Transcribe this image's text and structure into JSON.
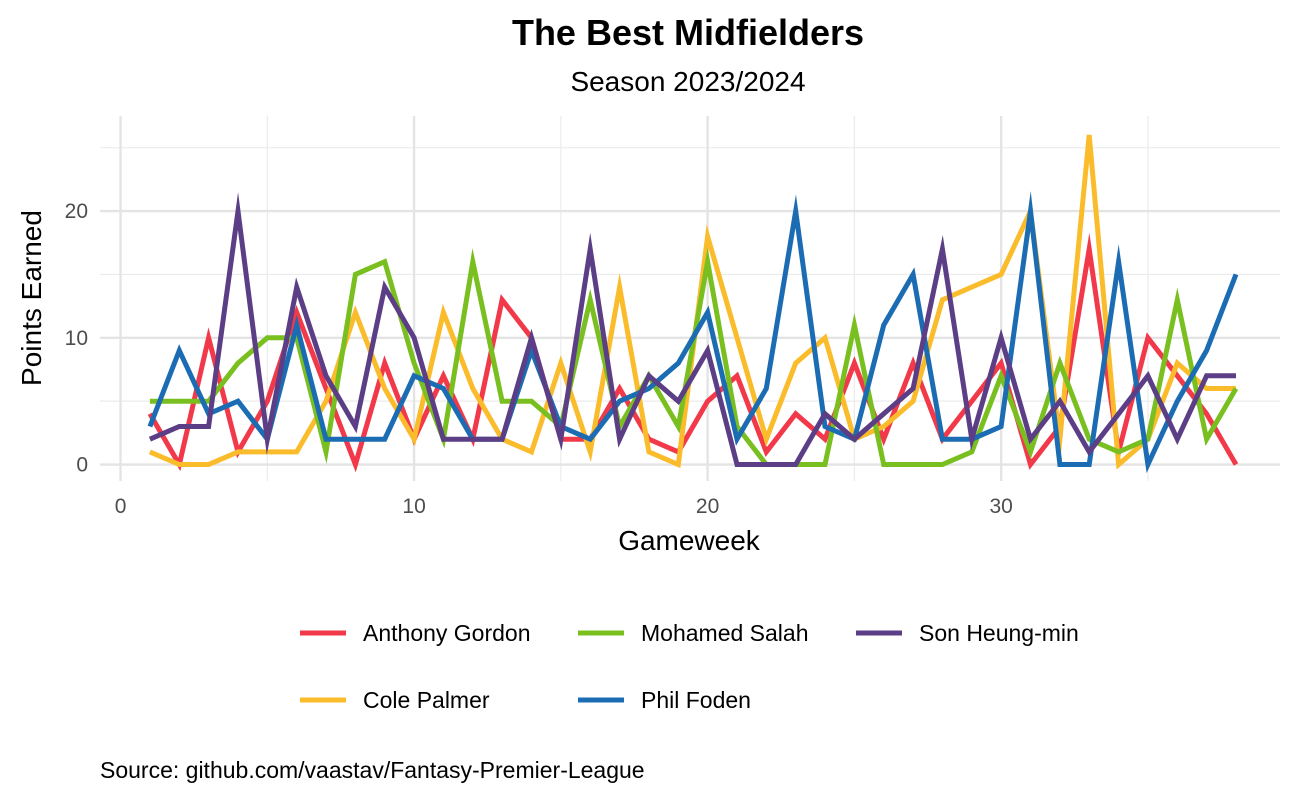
{
  "chart_data": {
    "type": "line",
    "title": "The Best Midfielders",
    "subtitle": "Season 2023/2024",
    "xlabel": "Gameweek",
    "ylabel": "Points Earned",
    "caption": "Source: github.com/vaastav/Fantasy-Premier-League",
    "xlim": [
      -0.7,
      39.5
    ],
    "ylim": [
      -1.3,
      27.5
    ],
    "x_ticks": [
      0,
      10,
      20,
      30
    ],
    "y_ticks": [
      0,
      10,
      20
    ],
    "grid": true,
    "legend_position": "bottom",
    "x": [
      1,
      2,
      3,
      4,
      5,
      6,
      7,
      8,
      9,
      10,
      11,
      12,
      13,
      14,
      15,
      16,
      17,
      18,
      19,
      20,
      21,
      22,
      23,
      24,
      25,
      26,
      27,
      28,
      29,
      30,
      31,
      32,
      33,
      34,
      35,
      36,
      37,
      38
    ],
    "series": [
      {
        "name": "Anthony Gordon",
        "color": "#F2394A",
        "values": [
          4,
          0,
          10,
          1,
          5,
          12,
          6,
          0,
          8,
          2,
          7,
          2,
          13,
          10,
          2,
          2,
          6,
          2,
          1,
          5,
          7,
          1,
          4,
          2,
          8,
          2,
          8,
          2,
          5,
          8,
          0,
          3,
          17,
          1,
          10,
          7,
          4,
          0
        ]
      },
      {
        "name": "Cole Palmer",
        "color": "#FBBC2B",
        "values": [
          1,
          0,
          0,
          1,
          1,
          1,
          5,
          12,
          6,
          2,
          12,
          6,
          2,
          1,
          8,
          1,
          14,
          1,
          0,
          18,
          10,
          2,
          8,
          10,
          2,
          3,
          5,
          13,
          14,
          15,
          20,
          2,
          26,
          0,
          2,
          8,
          6,
          6
        ]
      },
      {
        "name": "Mohamed Salah",
        "color": "#7ABF20",
        "values": [
          5,
          5,
          5,
          8,
          10,
          10,
          1,
          15,
          16,
          8,
          2,
          16,
          5,
          5,
          3,
          13,
          3,
          7,
          3,
          16,
          3,
          0,
          0,
          0,
          11,
          0,
          0,
          0,
          1,
          7,
          1,
          8,
          2,
          1,
          2,
          13,
          2,
          6
        ]
      },
      {
        "name": "Phil Foden",
        "color": "#1B6CB3",
        "values": [
          3,
          9,
          4,
          5,
          2,
          11,
          2,
          2,
          2,
          7,
          6,
          2,
          2,
          9,
          3,
          2,
          5,
          6,
          8,
          12,
          2,
          6,
          20,
          3,
          2,
          11,
          15,
          2,
          2,
          3,
          20,
          0,
          0,
          16,
          0,
          5,
          9,
          15
        ]
      },
      {
        "name": "Son Heung-min",
        "color": "#5B3E85",
        "values": [
          2,
          3,
          3,
          20,
          2,
          14,
          7,
          3,
          14,
          10,
          2,
          2,
          2,
          10,
          2,
          17,
          2,
          7,
          5,
          9,
          0,
          0,
          0,
          4,
          2,
          4,
          6,
          17,
          2,
          10,
          2,
          5,
          1,
          4,
          7,
          2,
          7,
          7
        ]
      }
    ]
  }
}
